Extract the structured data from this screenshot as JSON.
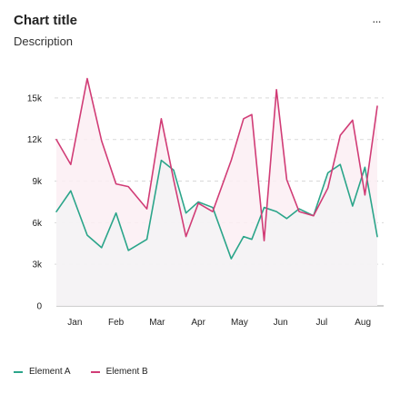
{
  "header": {
    "title": "Chart title",
    "description": "Description",
    "menu_label": "..."
  },
  "colors": {
    "element_a": "#2ba58a",
    "element_b": "#d13c76",
    "grid": "#d9d9d9",
    "axis": "#9e9e9e",
    "fill_b": "#fbeef3",
    "fill_a": "#f3f3f5"
  },
  "chart_data": {
    "type": "line",
    "title": "Chart title",
    "subtitle": "Description",
    "x_ticks": [
      "Jan",
      "Feb",
      "Mar",
      "Apr",
      "May",
      "Jun",
      "Jul",
      "Aug"
    ],
    "y_ticks": [
      "0",
      "3k",
      "6k",
      "9k",
      "12k",
      "15k"
    ],
    "y_tick_values": [
      0,
      3000,
      6000,
      9000,
      12000,
      15000
    ],
    "ylim": [
      0,
      16500
    ],
    "xlim": [
      0.55,
      8.35
    ],
    "grid": true,
    "legend": "bottom-left",
    "series": [
      {
        "name": "Element A",
        "color": "#2ba58a",
        "x": [
          0.55,
          0.9,
          1.3,
          1.65,
          2.0,
          2.3,
          2.75,
          3.1,
          3.4,
          3.7,
          4.0,
          4.35,
          4.8,
          5.1,
          5.3,
          5.6,
          5.9,
          6.15,
          6.45,
          6.8,
          7.15,
          7.45,
          7.75,
          8.05,
          8.35
        ],
        "y": [
          6800,
          8300,
          5100,
          4200,
          6700,
          4000,
          4800,
          10500,
          9800,
          6700,
          7500,
          7100,
          3400,
          5000,
          4800,
          7100,
          6800,
          6300,
          7000,
          6500,
          9600,
          10200,
          7200,
          10000,
          5000
        ]
      },
      {
        "name": "Element B",
        "color": "#d13c76",
        "x": [
          0.55,
          0.9,
          1.3,
          1.65,
          2.0,
          2.3,
          2.75,
          3.1,
          3.4,
          3.7,
          4.0,
          4.35,
          4.8,
          5.1,
          5.3,
          5.6,
          5.9,
          6.15,
          6.45,
          6.8,
          7.15,
          7.45,
          7.75,
          8.05,
          8.35
        ],
        "y": [
          12000,
          10200,
          16400,
          11900,
          8800,
          8600,
          7000,
          13500,
          9100,
          5000,
          7400,
          6800,
          10500,
          13500,
          13800,
          4700,
          15600,
          9100,
          6800,
          6500,
          8500,
          12300,
          13400,
          8000,
          14400
        ]
      }
    ]
  },
  "legend_items": [
    {
      "label": "Element A",
      "color": "#2ba58a"
    },
    {
      "label": "Element B",
      "color": "#d13c76"
    }
  ]
}
